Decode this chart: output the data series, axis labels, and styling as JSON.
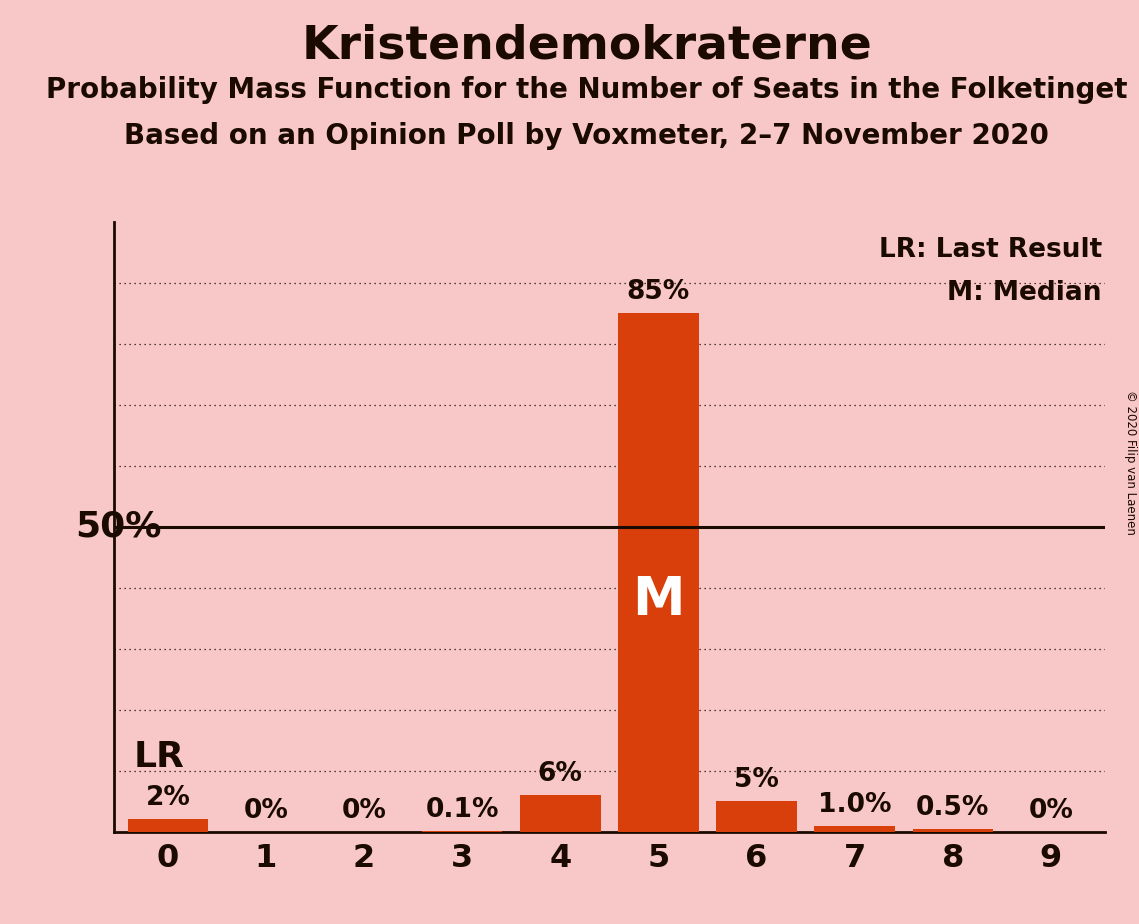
{
  "title": "Kristendemokraterne",
  "subtitle1": "Probability Mass Function for the Number of Seats in the Folketinget",
  "subtitle2": "Based on an Opinion Poll by Voxmeter, 2–7 November 2020",
  "copyright": "© 2020 Filip van Laenen",
  "categories": [
    0,
    1,
    2,
    3,
    4,
    5,
    6,
    7,
    8,
    9
  ],
  "values": [
    0.02,
    0.0,
    0.0,
    0.001,
    0.06,
    0.85,
    0.05,
    0.01,
    0.005,
    0.0
  ],
  "bar_color": "#d93f0b",
  "background_color": "#f8c8c8",
  "label_texts": [
    "2%",
    "0%",
    "0%",
    "0.1%",
    "6%",
    "85%",
    "5%",
    "1.0%",
    "0.5%",
    "0%"
  ],
  "median_seat": 5,
  "last_result_seat": 0,
  "fifty_pct_line": 0.5,
  "legend_lr": "LR: Last Result",
  "legend_m": "M: Median",
  "ylim": [
    0,
    1.0
  ],
  "fifty_pct_label": "50%",
  "grid_dotted_yticks": [
    0.1,
    0.2,
    0.3,
    0.4,
    0.6,
    0.7,
    0.8,
    0.9
  ],
  "text_color": "#1a0a00",
  "bar_label_fontsize": 19,
  "title_fontsize": 34,
  "subtitle_fontsize": 20,
  "axis_tick_fontsize": 23,
  "fifty_pct_fontsize": 26,
  "lr_fontsize": 26,
  "m_fontsize": 38,
  "legend_fontsize": 19
}
